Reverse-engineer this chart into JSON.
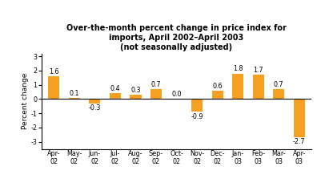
{
  "categories": [
    "Apr-\n02",
    "May-\n02",
    "Jun-\n02",
    "Jul-\n02",
    "Aug-\n02",
    "Sep-\n02",
    "Oct-\n02",
    "Nov-\n02",
    "Dec-\n02",
    "Jan-\n03",
    "Feb-\n03",
    "Mar-\n03",
    "Apr-\n03"
  ],
  "values": [
    1.6,
    0.1,
    -0.3,
    0.4,
    0.3,
    0.7,
    0.0,
    -0.9,
    0.6,
    1.8,
    1.7,
    0.7,
    -2.7
  ],
  "bar_color": "#F5A020",
  "title_line1": "Over-the-month percent change in price index for",
  "title_line2": "imports, April 2002–April 2003",
  "title_line3": "(not seasonally adjusted)",
  "ylabel": "Percent change",
  "ylim": [
    -3.5,
    3.2
  ],
  "yticks": [
    -3,
    -2,
    -1,
    0,
    1,
    2,
    3
  ],
  "label_fontsize": 5.8,
  "title_fontsize": 7.0,
  "ylabel_fontsize": 6.5,
  "tick_fontsize": 5.8,
  "background_color": "#ffffff"
}
